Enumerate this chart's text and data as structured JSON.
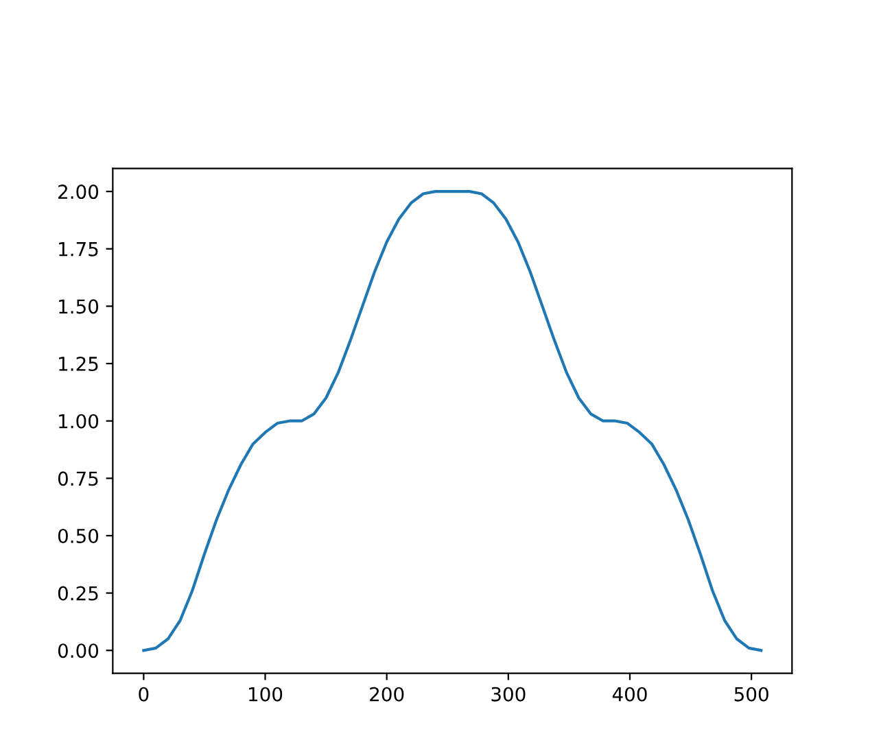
{
  "chart_data": {
    "type": "line",
    "x": [
      0,
      10,
      20,
      30,
      40,
      50,
      60,
      70,
      80,
      90,
      100,
      110,
      120,
      130,
      140,
      150,
      160,
      170,
      180,
      190,
      200,
      210,
      220,
      230,
      240,
      254,
      268,
      278,
      288,
      298,
      308,
      318,
      328,
      338,
      348,
      358,
      368,
      378,
      388,
      398,
      408,
      418,
      428,
      438,
      448,
      458,
      468,
      478,
      488,
      498,
      508
    ],
    "series": [
      {
        "color": "#1f77b4",
        "values": [
          0,
          0.01,
          0.05,
          0.13,
          0.26,
          0.42,
          0.57,
          0.7,
          0.81,
          0.9,
          0.95,
          0.99,
          1.0,
          1.0,
          1.03,
          1.1,
          1.21,
          1.35,
          1.5,
          1.65,
          1.78,
          1.88,
          1.95,
          1.99,
          2.0,
          2.0,
          2.0,
          1.99,
          1.95,
          1.88,
          1.78,
          1.65,
          1.5,
          1.35,
          1.21,
          1.1,
          1.03,
          1.0,
          1.0,
          0.99,
          0.95,
          0.9,
          0.81,
          0.7,
          0.57,
          0.42,
          0.26,
          0.13,
          0.05,
          0.01,
          0
        ]
      }
    ],
    "xlim": [
      -25.4,
      533.4
    ],
    "ylim": [
      -0.1,
      2.1
    ],
    "xticks": [
      0,
      100,
      200,
      300,
      400,
      500
    ],
    "yticks": [
      {
        "value": 0,
        "label": "0.00"
      },
      {
        "value": 0.25,
        "label": "0.25"
      },
      {
        "value": 0.5,
        "label": "0.50"
      },
      {
        "value": 0.75,
        "label": "0.75"
      },
      {
        "value": 1,
        "label": "1.00"
      },
      {
        "value": 1.25,
        "label": "1.25"
      },
      {
        "value": 1.5,
        "label": "1.50"
      },
      {
        "value": 1.75,
        "label": "1.75"
      },
      {
        "value": 2,
        "label": "2.00"
      }
    ]
  }
}
